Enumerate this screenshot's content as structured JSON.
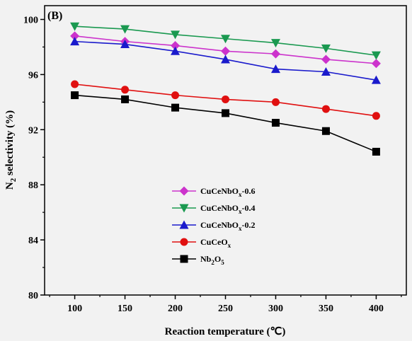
{
  "chart_data": {
    "type": "line",
    "panel_label": "(B)",
    "xlabel": "Reaction temperature (℃)",
    "ylabel_main": "N",
    "ylabel_sub": "2",
    "ylabel_rest": " selectivity (%)",
    "x": [
      100,
      150,
      200,
      250,
      300,
      350,
      400
    ],
    "xticks": [
      "100",
      "150",
      "200",
      "250",
      "300",
      "350",
      "400"
    ],
    "yticks": [
      "80",
      "84",
      "88",
      "92",
      "96",
      "100"
    ],
    "xlim": [
      70,
      430
    ],
    "ylim": [
      80,
      101
    ],
    "grid": false,
    "legend_position": "lower-left",
    "series": [
      {
        "name": "CuCeNbOx-0.6",
        "label_main": "CuCeNbO",
        "label_sub": "x",
        "label_suffix": "-0.6",
        "color": "#cc33cc",
        "marker": "diamond",
        "values": [
          98.8,
          98.4,
          98.1,
          97.7,
          97.5,
          97.1,
          96.8
        ]
      },
      {
        "name": "CuCeNbOx-0.4",
        "label_main": "CuCeNbO",
        "label_sub": "x",
        "label_suffix": "-0.4",
        "color": "#1a9950",
        "marker": "triangle-down",
        "values": [
          99.5,
          99.3,
          98.9,
          98.6,
          98.3,
          97.9,
          97.4
        ]
      },
      {
        "name": "CuCeNbOx-0.2",
        "label_main": "CuCeNbO",
        "label_sub": "x",
        "label_suffix": "-0.2",
        "color": "#1a1acc",
        "marker": "triangle-up",
        "values": [
          98.4,
          98.2,
          97.7,
          97.1,
          96.4,
          96.2,
          95.6
        ]
      },
      {
        "name": "CuCeOx",
        "label_main": "CuCeO",
        "label_sub": "x",
        "label_suffix": "",
        "color": "#e01010",
        "marker": "circle",
        "values": [
          95.3,
          94.9,
          94.5,
          94.2,
          94.0,
          93.5,
          93.0
        ]
      },
      {
        "name": "Nb2O5",
        "label_main": "Nb",
        "label_sub": "2",
        "label_suffix": "O",
        "label_sub2": "5",
        "color": "#000000",
        "marker": "square",
        "values": [
          94.5,
          94.2,
          93.6,
          93.2,
          92.5,
          91.9,
          90.4
        ]
      }
    ]
  }
}
